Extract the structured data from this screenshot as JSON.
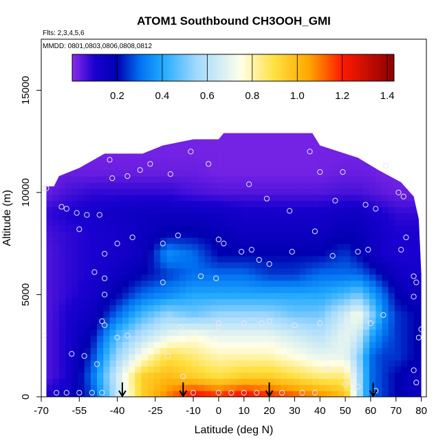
{
  "chart_data": {
    "type": "heatmap",
    "title": "ATOM1 Southbound CH3OOH_GMI",
    "annotations": {
      "flights": "Flts: 2,3,4,5,6",
      "dates": "MMDD: 0801,0803,0806,0808,0812"
    },
    "xlabel": "Latitude (deg N)",
    "ylabel": "Altitude (m)",
    "xlim": [
      -70,
      82
    ],
    "ylim": [
      0,
      17500
    ],
    "xticks": [
      -70,
      -55,
      -40,
      -25,
      -10,
      0,
      10,
      20,
      30,
      40,
      50,
      60,
      70,
      80
    ],
    "xticklabels": [
      "-70",
      "-55",
      "-40",
      "-25",
      "-10",
      "0",
      "10",
      "20",
      "30",
      "40",
      "50",
      "60",
      "70",
      "80"
    ],
    "yticks": [
      0,
      5000,
      10000,
      15000
    ],
    "yticklabels": [
      "0",
      "5000",
      "10000",
      "15000"
    ],
    "colorbar": {
      "range": [
        0.0,
        1.43
      ],
      "ticks": [
        0.2,
        0.4,
        0.6,
        0.8,
        1.0,
        1.2,
        1.4
      ],
      "ticklabels": [
        "0.2",
        "0.4",
        "0.6",
        "0.8",
        "1.0",
        "1.2",
        "1.4"
      ],
      "stops": [
        {
          "v": 0.0,
          "c": "#8a2be8"
        },
        {
          "v": 0.1,
          "c": "#1a00d0"
        },
        {
          "v": 0.2,
          "c": "#0000b0"
        },
        {
          "v": 0.3,
          "c": "#0070f0"
        },
        {
          "v": 0.4,
          "c": "#20a8ff"
        },
        {
          "v": 0.55,
          "c": "#a0d8ff"
        },
        {
          "v": 0.75,
          "c": "#ffffe8"
        },
        {
          "v": 0.9,
          "c": "#ffe040"
        },
        {
          "v": 1.05,
          "c": "#ffa800"
        },
        {
          "v": 1.2,
          "c": "#ff1a00"
        },
        {
          "v": 1.43,
          "c": "#8a0000"
        }
      ]
    },
    "grid": false,
    "legend": "none",
    "field": {
      "altitudes": [
        0,
        1000,
        2000,
        3000,
        4000,
        5000,
        6000,
        7000,
        8000,
        9000,
        10000,
        11000,
        12000
      ],
      "latitudes": [
        -68,
        -60,
        -50,
        -40,
        -30,
        -20,
        -10,
        0,
        10,
        20,
        30,
        40,
        50,
        55,
        60,
        65,
        70,
        78
      ],
      "values": [
        [
          0.1,
          0.15,
          0.25,
          0.6,
          0.95,
          1.1,
          1.25,
          1.2,
          1.25,
          1.2,
          1.15,
          1.1,
          1.0,
          0.6,
          0.3,
          0.25,
          0.2,
          0.15
        ],
        [
          0.05,
          0.1,
          0.3,
          0.65,
          0.95,
          1.0,
          0.95,
          0.9,
          0.95,
          0.95,
          0.9,
          0.85,
          0.85,
          0.6,
          0.3,
          0.25,
          0.2,
          0.15
        ],
        [
          0.05,
          0.1,
          0.25,
          0.55,
          0.75,
          0.9,
          0.85,
          0.8,
          0.8,
          0.8,
          0.75,
          0.7,
          0.7,
          0.55,
          0.3,
          0.25,
          0.25,
          0.2
        ],
        [
          0.05,
          0.1,
          0.2,
          0.45,
          0.6,
          0.7,
          0.75,
          0.7,
          0.7,
          0.7,
          0.65,
          0.6,
          0.7,
          0.65,
          0.4,
          0.3,
          0.25,
          0.2
        ],
        [
          0.05,
          0.1,
          0.15,
          0.3,
          0.45,
          0.55,
          0.5,
          0.55,
          0.55,
          0.55,
          0.5,
          0.5,
          0.65,
          0.75,
          0.55,
          0.35,
          0.25,
          0.2
        ],
        [
          0.05,
          0.08,
          0.12,
          0.2,
          0.3,
          0.35,
          0.4,
          0.4,
          0.4,
          0.4,
          0.4,
          0.4,
          0.45,
          0.5,
          0.4,
          0.3,
          0.2,
          0.15
        ],
        [
          0.05,
          0.08,
          0.1,
          0.15,
          0.2,
          0.25,
          0.3,
          0.3,
          0.3,
          0.25,
          0.25,
          0.3,
          0.3,
          0.3,
          0.25,
          0.2,
          0.15,
          0.12
        ],
        [
          0.05,
          0.08,
          0.1,
          0.12,
          0.15,
          0.35,
          0.3,
          0.2,
          0.2,
          0.2,
          0.2,
          0.2,
          0.25,
          0.2,
          0.15,
          0.12,
          0.1,
          0.1
        ],
        [
          0.06,
          0.08,
          0.1,
          0.12,
          0.15,
          0.2,
          0.2,
          0.18,
          0.15,
          0.15,
          0.15,
          0.15,
          0.18,
          0.18,
          0.15,
          0.12,
          0.1,
          0.1
        ],
        [
          0.08,
          0.1,
          0.12,
          0.14,
          0.15,
          0.15,
          0.15,
          0.14,
          0.12,
          0.12,
          0.12,
          0.12,
          0.14,
          0.14,
          0.12,
          0.1,
          0.08,
          0.08
        ],
        [
          0.03,
          0.06,
          0.08,
          0.08,
          0.08,
          0.08,
          0.06,
          0.05,
          0.05,
          0.05,
          0.05,
          0.05,
          0.06,
          0.06,
          0.05,
          0.04,
          0.03,
          0.03
        ],
        [
          0.02,
          0.03,
          0.03,
          0.03,
          0.03,
          0.03,
          0.03,
          0.02,
          0.02,
          0.02,
          0.02,
          0.02,
          0.03,
          0.03,
          0.03,
          0.02,
          0.02,
          0.02
        ],
        [
          0.02,
          0.02,
          0.02,
          0.02,
          0.02,
          0.02,
          0.02,
          0.02,
          0.02,
          0.02,
          0.02,
          0.02,
          0.02,
          0.02,
          0.02,
          0.02,
          0.02,
          0.02
        ]
      ]
    },
    "coverage_top": [
      {
        "lat": -68,
        "alt": 10300
      },
      {
        "lat": -65,
        "alt": 10300
      },
      {
        "lat": -63,
        "alt": 10800
      },
      {
        "lat": -55,
        "alt": 11200
      },
      {
        "lat": -45,
        "alt": 11900
      },
      {
        "lat": -30,
        "alt": 11900
      },
      {
        "lat": -22,
        "alt": 12300
      },
      {
        "lat": -10,
        "alt": 12600
      },
      {
        "lat": 0,
        "alt": 12600
      },
      {
        "lat": 2,
        "alt": 12900
      },
      {
        "lat": 37,
        "alt": 12900
      },
      {
        "lat": 40,
        "alt": 12300
      },
      {
        "lat": 55,
        "alt": 11700
      },
      {
        "lat": 63,
        "alt": 11100
      },
      {
        "lat": 72,
        "alt": 10500
      },
      {
        "lat": 77,
        "alt": 9800
      },
      {
        "lat": 79,
        "alt": 8700
      },
      {
        "lat": 80,
        "alt": 6000
      },
      {
        "lat": 80,
        "alt": 0
      }
    ],
    "coverage_left_lat": -68,
    "markers": [
      {
        "lat": -38,
        "alt": 0
      },
      {
        "lat": -14,
        "alt": 0
      },
      {
        "lat": 20,
        "alt": 0
      },
      {
        "lat": 61,
        "alt": 0
      }
    ],
    "points": [
      [
        -68,
        10200
      ],
      [
        -69,
        10200
      ],
      [
        -62,
        9300
      ],
      [
        -60,
        9200
      ],
      [
        -56,
        9000
      ],
      [
        -52,
        8900
      ],
      [
        -47,
        8900
      ],
      [
        -55,
        8200
      ],
      [
        -40,
        7500
      ],
      [
        -34,
        7800
      ],
      [
        -45,
        7000
      ],
      [
        -49,
        6100
      ],
      [
        -45,
        5800
      ],
      [
        -45,
        5000
      ],
      [
        -46,
        3700
      ],
      [
        -45,
        3500
      ],
      [
        -40,
        2900
      ],
      [
        -36,
        3000
      ],
      [
        -69,
        3000
      ],
      [
        -58,
        2100
      ],
      [
        -53,
        2000
      ],
      [
        -48,
        1600
      ],
      [
        -64,
        200
      ],
      [
        -60,
        200
      ],
      [
        -55,
        200
      ],
      [
        -50,
        200
      ],
      [
        -46,
        200
      ],
      [
        -40,
        200
      ],
      [
        -43,
        11600
      ],
      [
        -42,
        10700
      ],
      [
        -36,
        10800
      ],
      [
        -31,
        11100
      ],
      [
        -27,
        11400
      ],
      [
        -19,
        10900
      ],
      [
        -11,
        12000
      ],
      [
        -4,
        11400
      ],
      [
        -22,
        7500
      ],
      [
        -16,
        7900
      ],
      [
        -22,
        5600
      ],
      [
        -7,
        5900
      ],
      [
        -1,
        5800
      ],
      [
        0,
        7700
      ],
      [
        2,
        7500
      ],
      [
        9,
        7100
      ],
      [
        13,
        7200
      ],
      [
        16,
        6700
      ],
      [
        20,
        6500
      ],
      [
        29,
        7100
      ],
      [
        12,
        10400
      ],
      [
        19,
        9700
      ],
      [
        28,
        9100
      ],
      [
        36,
        12000
      ],
      [
        40,
        11000
      ],
      [
        49,
        11000
      ],
      [
        46,
        9600
      ],
      [
        38,
        8100
      ],
      [
        45,
        6900
      ],
      [
        55,
        7100
      ],
      [
        59,
        7200
      ],
      [
        58,
        9400
      ],
      [
        62,
        9200
      ],
      [
        66,
        11300
      ],
      [
        71,
        10000
      ],
      [
        73,
        9800
      ],
      [
        74,
        7800
      ],
      [
        72,
        7200
      ],
      [
        77,
        5900
      ],
      [
        78,
        5600
      ],
      [
        77,
        4900
      ],
      [
        65,
        4000
      ],
      [
        60,
        3600
      ],
      [
        50,
        3600
      ],
      [
        40,
        3600
      ],
      [
        30,
        3500
      ],
      [
        20,
        3700
      ],
      [
        17,
        3600
      ],
      [
        10,
        3600
      ],
      [
        0,
        3600
      ],
      [
        0,
        3400
      ],
      [
        -3,
        3000
      ],
      [
        -15,
        3400
      ],
      [
        -20,
        2000
      ],
      [
        -14,
        1000
      ],
      [
        -10,
        200
      ],
      [
        0,
        200
      ],
      [
        5,
        200
      ],
      [
        10,
        200
      ],
      [
        15,
        200
      ],
      [
        25,
        200
      ],
      [
        33,
        200
      ],
      [
        38,
        200
      ],
      [
        43,
        1400
      ],
      [
        50,
        600
      ],
      [
        55,
        500
      ],
      [
        62,
        300
      ],
      [
        77,
        1300
      ],
      [
        78,
        700
      ],
      [
        80,
        3300
      ],
      [
        79,
        2900
      ]
    ]
  }
}
